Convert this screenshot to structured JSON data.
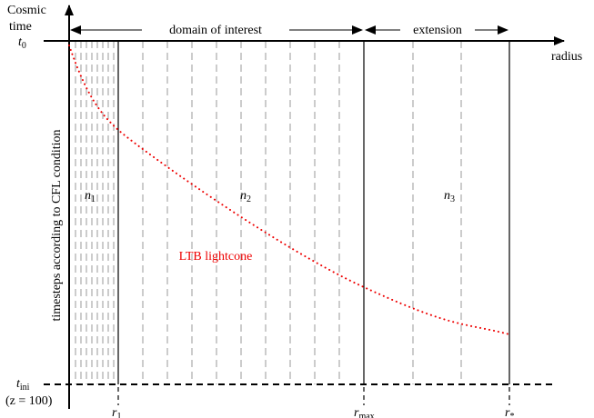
{
  "axes": {
    "y_label": [
      "Cosmic",
      "time"
    ],
    "x_label": "radius",
    "t0": {
      "base": "t",
      "sub": "0"
    },
    "t_ini": {
      "base": "t",
      "sub": "ini"
    },
    "z_note": "(z = 100)"
  },
  "ranges": {
    "domain": "domain of interest",
    "extension": "extension"
  },
  "timesteps_label": "timesteps according to CFL condition",
  "regions": [
    {
      "base": "n",
      "sub": "1"
    },
    {
      "base": "n",
      "sub": "2"
    },
    {
      "base": "n",
      "sub": "3"
    }
  ],
  "lightcone_label": "LTB lightcone",
  "radii": [
    {
      "base": "r",
      "sub": "1"
    },
    {
      "base": "r",
      "sub": "max"
    },
    {
      "base": "r",
      "sub": "*"
    }
  ]
}
